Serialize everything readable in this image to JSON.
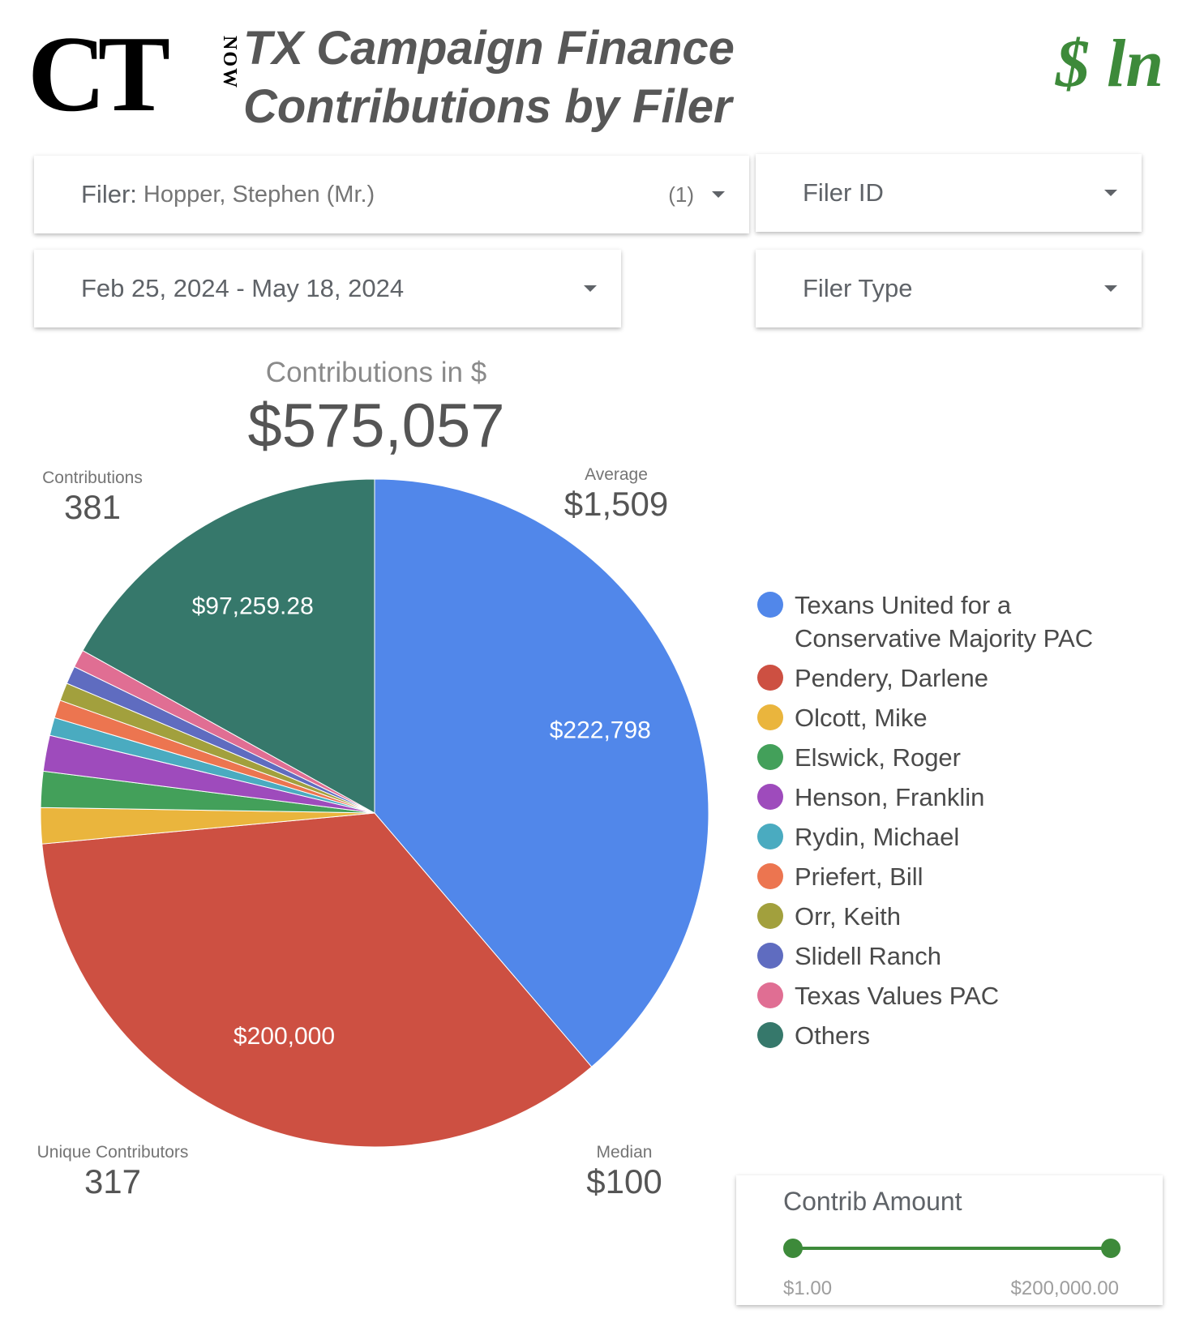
{
  "header": {
    "logo_main": "CT",
    "logo_sub": "NOW",
    "title": "TX Campaign Finance Contributions by Filer",
    "brand_mark": "$ ln"
  },
  "filters": {
    "filer": {
      "label": "Filer",
      "value": "Hopper, Stephen (Mr.)",
      "count": "(1)"
    },
    "filer_id": {
      "label": "Filer ID"
    },
    "date_range": {
      "value": "Feb 25, 2024 - May 18, 2024"
    },
    "filer_type": {
      "label": "Filer Type"
    }
  },
  "scorecards": {
    "total": {
      "label": "Contributions in $",
      "value": "$575,057"
    },
    "contributions": {
      "label": "Contributions",
      "value": "381"
    },
    "average": {
      "label": "Average",
      "value": "$1,509"
    },
    "unique_contributors": {
      "label": "Unique Contributors",
      "value": "317"
    },
    "median": {
      "label": "Median",
      "value": "$100"
    }
  },
  "chart_data": {
    "type": "pie",
    "slices": [
      {
        "name": "Texans United for a Conservative Majority PAC",
        "value": 222798,
        "label": "$222,798",
        "color": "#5187ea"
      },
      {
        "name": "Pendery, Darlene",
        "value": 200000,
        "label": "$200,000",
        "color": "#cd5042"
      },
      {
        "name": "Olcott, Mike",
        "value": 10000,
        "label": "",
        "color": "#eab53d"
      },
      {
        "name": "Elswick, Roger",
        "value": 10000,
        "label": "",
        "color": "#43a05a"
      },
      {
        "name": "Henson, Franklin",
        "value": 10000,
        "label": "",
        "color": "#9e4bbc"
      },
      {
        "name": "Rydin, Michael",
        "value": 5000,
        "label": "",
        "color": "#4aabc0"
      },
      {
        "name": "Priefert, Bill",
        "value": 5000,
        "label": "",
        "color": "#ec7550"
      },
      {
        "name": "Orr, Keith",
        "value": 5000,
        "label": "",
        "color": "#a2a03d"
      },
      {
        "name": "Slidell Ranch",
        "value": 5000,
        "label": "",
        "color": "#5f6cc0"
      },
      {
        "name": "Texas Values PAC",
        "value": 5000,
        "label": "",
        "color": "#e06e93"
      },
      {
        "name": "Others",
        "value": 97259.28,
        "label": "$97,259.28",
        "color": "#36786b"
      }
    ]
  },
  "legend": [
    {
      "label": "Texans United for a Conservative Majority PAC",
      "color": "#5187ea"
    },
    {
      "label": "Pendery, Darlene",
      "color": "#cd5042"
    },
    {
      "label": "Olcott, Mike",
      "color": "#eab53d"
    },
    {
      "label": "Elswick, Roger",
      "color": "#43a05a"
    },
    {
      "label": "Henson, Franklin",
      "color": "#9e4bbc"
    },
    {
      "label": "Rydin, Michael",
      "color": "#4aabc0"
    },
    {
      "label": "Priefert, Bill",
      "color": "#ec7550"
    },
    {
      "label": "Orr, Keith",
      "color": "#a2a03d"
    },
    {
      "label": "Slidell Ranch",
      "color": "#5f6cc0"
    },
    {
      "label": "Texas Values PAC",
      "color": "#e06e93"
    },
    {
      "label": "Others",
      "color": "#36786b"
    }
  ],
  "slider": {
    "title": "Contrib Amount",
    "min_label": "$1.00",
    "max_label": "$200,000.00",
    "selected_min_fraction": 0,
    "selected_max_fraction": 1,
    "color": "#3d8a3a"
  }
}
